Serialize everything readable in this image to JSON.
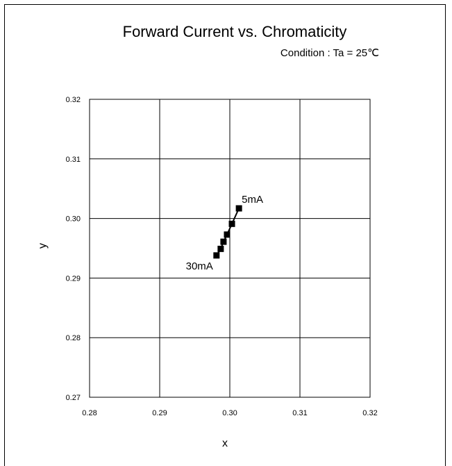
{
  "chart_data": {
    "type": "scatter",
    "title": "Forward Current vs. Chromaticity",
    "subtitle": "Condition : Ta = 25℃",
    "xlabel": "x",
    "ylabel": "y",
    "xlim": [
      0.28,
      0.32
    ],
    "ylim": [
      0.27,
      0.32
    ],
    "xticks": [
      "0.28",
      "0.29",
      "0.30",
      "0.31",
      "0.32"
    ],
    "yticks": [
      "0.27",
      "0.28",
      "0.29",
      "0.30",
      "0.31",
      "0.32"
    ],
    "grid": true,
    "series": [
      {
        "points": [
          {
            "x": 0.3013,
            "y": 0.3017
          },
          {
            "x": 0.3003,
            "y": 0.2991
          },
          {
            "x": 0.2996,
            "y": 0.2973
          },
          {
            "x": 0.2991,
            "y": 0.2961
          },
          {
            "x": 0.2987,
            "y": 0.2949
          },
          {
            "x": 0.2981,
            "y": 0.2938
          }
        ],
        "marker": "square",
        "color": "#000000"
      }
    ],
    "annotations": [
      {
        "text": "5mA",
        "x": 0.3013,
        "y": 0.3017
      },
      {
        "text": "30mA",
        "x": 0.2981,
        "y": 0.2938
      }
    ]
  }
}
